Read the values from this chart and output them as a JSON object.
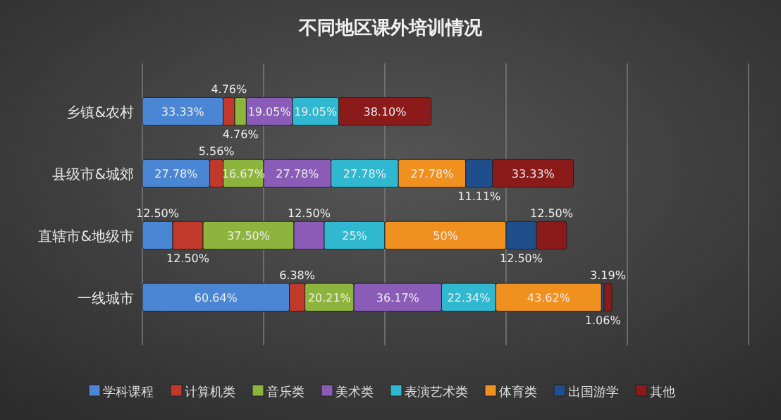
{
  "chart_data": {
    "type": "bar",
    "title": "不同地区课外培训情况",
    "orientation": "horizontal",
    "stacked": true,
    "categories": [
      "乡镇&农村",
      "县级市&城郊",
      "直辖市&地级市",
      "一线城市"
    ],
    "xlim": [
      0,
      250
    ],
    "xticks": [
      {
        "value": 0,
        "label": null
      },
      {
        "value": 50,
        "label": null
      },
      {
        "value": 100,
        "label": null
      },
      {
        "value": 150,
        "label": null
      },
      {
        "value": 200,
        "label": null
      },
      {
        "value": 250,
        "label": null
      }
    ],
    "tick_labels": "y",
    "grid": "x",
    "legend": "bottom",
    "series": [
      {
        "name": "学科课程",
        "color": "#4a86d4",
        "values": [
          33.33,
          27.78,
          12.5,
          60.64
        ],
        "value_labels": [
          "33.33%",
          "27.78%",
          "12.50%",
          "60.64%"
        ]
      },
      {
        "name": "计算机类",
        "color": "#c0392b",
        "values": [
          4.76,
          5.56,
          12.5,
          6.38
        ],
        "value_labels": [
          "4.76%",
          "5.56%",
          "12.50%",
          "6.38%"
        ]
      },
      {
        "name": "音乐类",
        "color": "#8db43c",
        "values": [
          4.76,
          16.67,
          37.5,
          20.21
        ],
        "value_labels": [
          "4.76%",
          "16.67%",
          "37.50%",
          "20.21%"
        ]
      },
      {
        "name": "美术类",
        "color": "#8a5cb8",
        "values": [
          19.05,
          27.78,
          12.5,
          36.17
        ],
        "value_labels": [
          "19.05%",
          "27.78%",
          "12.50%",
          "36.17%"
        ]
      },
      {
        "name": "表演艺术类",
        "color": "#2fb8d0",
        "values": [
          19.05,
          27.78,
          25,
          22.34
        ],
        "value_labels": [
          "19.05%",
          "27.78%",
          "25%",
          "22.34%"
        ]
      },
      {
        "name": "体育类",
        "color": "#f0901e",
        "values": [
          null,
          27.78,
          50,
          43.62
        ],
        "value_labels": [
          null,
          "27.78%",
          "50%",
          "43.62%"
        ]
      },
      {
        "name": "出国游学",
        "color": "#1f4e8c",
        "values": [
          null,
          11.11,
          12.5,
          1.06
        ],
        "value_labels": [
          null,
          "11.11%",
          "12.50%",
          "1.06%"
        ]
      },
      {
        "name": "其他",
        "color": "#8b1a1a",
        "values": [
          38.1,
          33.33,
          12.5,
          3.19
        ],
        "value_labels": [
          "38.10%",
          "33.33%",
          "12.50%",
          "3.19%"
        ]
      }
    ]
  }
}
